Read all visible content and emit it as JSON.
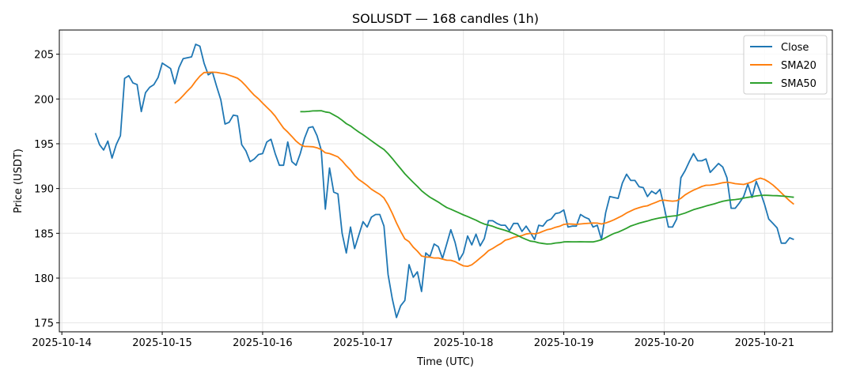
{
  "chart_data": {
    "type": "line",
    "title": "SOLUSDT — 168 candles (1h)",
    "xlabel": "Time (UTC)",
    "ylabel": "Price (USDT)",
    "x_unit": "hours since 2025-10-14 00:00 UTC",
    "x_start_hour": 8,
    "x_step_hours": 1,
    "xlim": [
      -0.6,
      184.2
    ],
    "ylim": [
      174.0,
      207.7
    ],
    "grid": true,
    "legend_position": "top-right",
    "x_ticks": [
      {
        "hour": 0,
        "label": "2025-10-14"
      },
      {
        "hour": 24,
        "label": "2025-10-15"
      },
      {
        "hour": 48,
        "label": "2025-10-16"
      },
      {
        "hour": 72,
        "label": "2025-10-17"
      },
      {
        "hour": 96,
        "label": "2025-10-18"
      },
      {
        "hour": 120,
        "label": "2025-10-19"
      },
      {
        "hour": 144,
        "label": "2025-10-20"
      },
      {
        "hour": 168,
        "label": "2025-10-21"
      }
    ],
    "y_ticks": [
      {
        "value": 175,
        "label": "175"
      },
      {
        "value": 180,
        "label": "180"
      },
      {
        "value": 185,
        "label": "185"
      },
      {
        "value": 190,
        "label": "190"
      },
      {
        "value": 195,
        "label": "195"
      },
      {
        "value": 200,
        "label": "200"
      },
      {
        "value": 205,
        "label": "205"
      }
    ],
    "series": [
      {
        "name": "Close",
        "color": "#1f77b4",
        "values": [
          196.2,
          194.9,
          194.3,
          195.3,
          193.4,
          194.9,
          195.9,
          202.3,
          202.6,
          201.8,
          201.6,
          198.6,
          200.7,
          201.3,
          201.6,
          202.4,
          204.0,
          203.7,
          203.4,
          201.7,
          203.5,
          204.5,
          204.6,
          204.7,
          206.1,
          205.9,
          204.0,
          202.7,
          203.0,
          201.4,
          199.9,
          197.2,
          197.4,
          198.2,
          198.1,
          194.9,
          194.2,
          193.0,
          193.3,
          193.8,
          193.9,
          195.2,
          195.5,
          193.9,
          192.6,
          192.6,
          195.2,
          193.0,
          192.6,
          193.9,
          195.6,
          196.8,
          196.9,
          195.9,
          194.3,
          187.7,
          192.3,
          189.6,
          189.4,
          185.0,
          182.8,
          185.7,
          183.3,
          184.8,
          186.3,
          185.7,
          186.8,
          187.1,
          187.1,
          185.8,
          180.4,
          177.7,
          175.6,
          176.9,
          177.5,
          181.5,
          180.1,
          180.7,
          178.5,
          182.8,
          182.4,
          183.8,
          183.5,
          182.2,
          183.8,
          185.4,
          184.0,
          182.0,
          182.8,
          184.7,
          183.7,
          184.9,
          183.6,
          184.4,
          186.4,
          186.4,
          186.1,
          185.9,
          185.9,
          185.3,
          186.1,
          186.1,
          185.2,
          185.8,
          185.1,
          184.3,
          185.9,
          185.8,
          186.4,
          186.6,
          187.2,
          187.3,
          187.6,
          185.7,
          185.8,
          185.8,
          187.1,
          186.8,
          186.6,
          185.7,
          185.9,
          184.3,
          187.3,
          189.1,
          189.0,
          188.9,
          190.6,
          191.6,
          190.9,
          190.9,
          190.2,
          190.1,
          189.1,
          189.7,
          189.4,
          189.9,
          187.9,
          185.7,
          185.7,
          186.6,
          191.2,
          192.0,
          193.0,
          193.9,
          193.1,
          193.1,
          193.3,
          191.8,
          192.3,
          192.8,
          192.4,
          191.2,
          187.8,
          187.8,
          188.4,
          189.1,
          190.5,
          189.0,
          190.8,
          189.6,
          188.2,
          186.6,
          186.1,
          185.6,
          183.9,
          183.9,
          184.5,
          184.3
        ]
      },
      {
        "name": "SMA20",
        "color": "#ff7f0e",
        "window": 20
      },
      {
        "name": "SMA50",
        "color": "#2ca02c",
        "window": 50
      }
    ]
  }
}
